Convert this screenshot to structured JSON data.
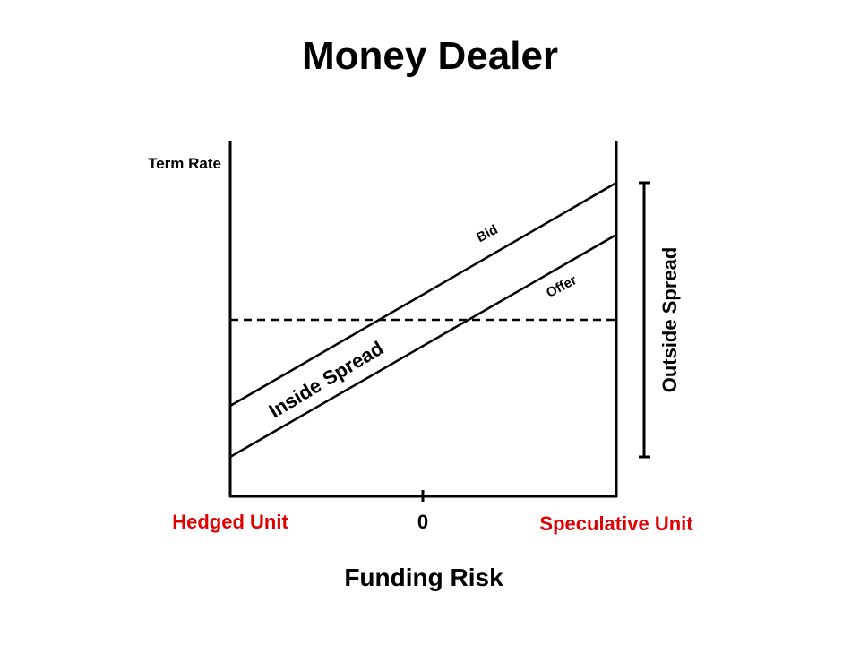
{
  "title": "Money Dealer",
  "axes": {
    "y_label": "Term Rate",
    "x_label": "Funding Risk",
    "origin_label": "0",
    "left_end_label": "Hedged Unit",
    "right_end_label": "Speculative Unit"
  },
  "lines": {
    "bid_label": "Bid",
    "offer_label": "Offer"
  },
  "annotations": {
    "inside_spread": "Inside Spread",
    "outside_spread": "Outside Spread"
  },
  "colors": {
    "ink": "#000000",
    "unit_label": "#e00000",
    "background": "#ffffff"
  }
}
